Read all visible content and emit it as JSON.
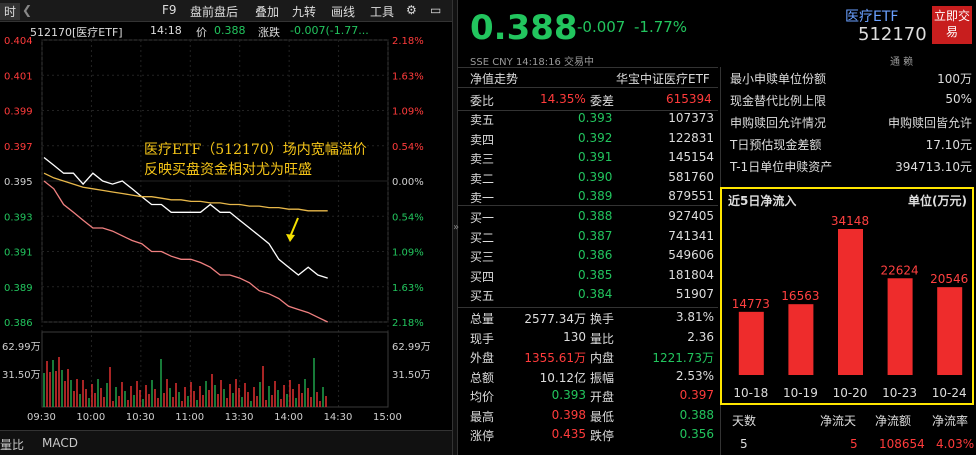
{
  "toolbar": {
    "time_tab": "时",
    "f9": "F9",
    "pre_post": "盘前盘后",
    "overlay": "叠加",
    "nine": "九转",
    "draw": "画线",
    "tools": "工具"
  },
  "chart_header": {
    "code_name": "512170[医疗ETF]",
    "time": "14:18",
    "price_label": "价",
    "price": "0.388",
    "change_label": "涨跌",
    "change": "-0.007(-1.77..."
  },
  "annotation": {
    "line1": "医疗ETF（512170）场内宽幅溢价",
    "line2": "反映买盘资金相对尤为旺盛"
  },
  "chart_data": {
    "type": "line",
    "title": "512170[医疗ETF] 分时",
    "x_labels": [
      "09:30",
      "10:00",
      "10:30",
      "11:00",
      "13:30",
      "14:00",
      "14:30",
      "15:00"
    ],
    "y_left_labels": [
      "0.404",
      "0.401",
      "0.399",
      "0.397",
      "0.395",
      "0.393",
      "0.391",
      "0.389",
      "0.386"
    ],
    "y_right_labels": [
      "2.18%",
      "1.63%",
      "1.09%",
      "0.54%",
      "0.00%",
      "0.54%",
      "1.09%",
      "1.63%",
      "2.18%"
    ],
    "vol_labels": [
      "62.99万",
      "31.50万"
    ],
    "series": [
      {
        "color": "#ffffff",
        "values": [
          0.3965,
          0.396,
          0.3955,
          0.3955,
          0.3948,
          0.3955,
          0.395,
          0.3948,
          0.395,
          0.3945,
          0.394,
          0.3935,
          0.3935,
          0.393,
          0.393,
          0.393,
          0.393,
          0.3935,
          0.393,
          0.393,
          0.3925,
          0.392,
          0.3915,
          0.391,
          0.39,
          0.3895,
          0.389,
          0.3895,
          0.389,
          0.3888
        ]
      },
      {
        "color": "#e8b84a",
        "values": [
          0.3955,
          0.3952,
          0.395,
          0.3948,
          0.3946,
          0.3945,
          0.3944,
          0.3943,
          0.3942,
          0.3941,
          0.394,
          0.394,
          0.3939,
          0.3938,
          0.3938,
          0.3937,
          0.3937,
          0.3936,
          0.3936,
          0.3935,
          0.3935,
          0.3934,
          0.3934,
          0.3933,
          0.3933,
          0.3932,
          0.3932,
          0.3931,
          0.3931,
          0.3931
        ]
      },
      {
        "color": "#f08080",
        "values": [
          0.395,
          0.3945,
          0.3935,
          0.393,
          0.3925,
          0.392,
          0.392,
          0.3918,
          0.3915,
          0.3912,
          0.391,
          0.3905,
          0.3905,
          0.3902,
          0.39,
          0.39,
          0.3898,
          0.3895,
          0.389,
          0.389,
          0.3888,
          0.3885,
          0.388,
          0.3878,
          0.3875,
          0.387,
          0.3868,
          0.3866,
          0.3863,
          0.386
        ]
      }
    ],
    "ylim": [
      0.386,
      0.404
    ]
  },
  "bottom_tabs": {
    "vol": "量比",
    "macd": "MACD"
  },
  "quote": {
    "price": "0.388",
    "change": "-0.007",
    "pct": "-1.77%",
    "exchange_line": "SSE  CNY  14:18:16  交易中",
    "name": "医疗ETF",
    "code": "512170",
    "trade_btn": "立即交易",
    "icons_text": "通  赖"
  },
  "order_book": {
    "header_left": "净值走势",
    "header_right": "华宝中证医疗ETF",
    "weibi_label": "委比",
    "weibi": "14.35%",
    "weicha_label": "委差",
    "weicha": "615394",
    "asks": [
      {
        "label": "卖五",
        "price": "0.393",
        "vol": "107373"
      },
      {
        "label": "卖四",
        "price": "0.392",
        "vol": "122831"
      },
      {
        "label": "卖三",
        "price": "0.391",
        "vol": "145154"
      },
      {
        "label": "卖二",
        "price": "0.390",
        "vol": "581760"
      },
      {
        "label": "卖一",
        "price": "0.389",
        "vol": "879551"
      }
    ],
    "bids": [
      {
        "label": "买一",
        "price": "0.388",
        "vol": "927405"
      },
      {
        "label": "买二",
        "price": "0.387",
        "vol": "741341"
      },
      {
        "label": "买三",
        "price": "0.386",
        "vol": "549606"
      },
      {
        "label": "买四",
        "price": "0.385",
        "vol": "181804"
      },
      {
        "label": "买五",
        "price": "0.384",
        "vol": "51907"
      }
    ]
  },
  "stats": [
    {
      "l1": "总量",
      "v1": "2577.34万",
      "l2": "换手",
      "v2": "3.81%",
      "c1": "white",
      "c2": "white"
    },
    {
      "l1": "现手",
      "v1": "130",
      "l2": "量比",
      "v2": "2.36",
      "c1": "white",
      "c2": "white"
    },
    {
      "l1": "外盘",
      "v1": "1355.61万",
      "l2": "内盘",
      "v2": "1221.73万",
      "c1": "red",
      "c2": "green"
    },
    {
      "l1": "总额",
      "v1": "10.12亿",
      "l2": "振幅",
      "v2": "2.53%",
      "c1": "white",
      "c2": "white"
    },
    {
      "l1": "均价",
      "v1": "0.393",
      "l2": "开盘",
      "v2": "0.397",
      "c1": "green",
      "c2": "red"
    },
    {
      "l1": "最高",
      "v1": "0.398",
      "l2": "最低",
      "v2": "0.388",
      "c1": "red",
      "c2": "green"
    },
    {
      "l1": "涨停",
      "v1": "0.435",
      "l2": "跌停",
      "v2": "0.356",
      "c1": "red",
      "c2": "green"
    }
  ],
  "fund_info": [
    {
      "label": "最小申赎单位份额",
      "value": "100万"
    },
    {
      "label": "现金替代比例上限",
      "value": "50%"
    },
    {
      "label": "申购赎回允许情况",
      "value": "申购赎回皆允许"
    },
    {
      "label": "T日预估现金差额",
      "value": "17.10元"
    },
    {
      "label": "T-1日单位申赎资产",
      "value": "394713.10元"
    }
  ],
  "net_inflow": {
    "title": "近5日净流入",
    "unit": "单位(万元)",
    "chart_data": {
      "type": "bar",
      "categories": [
        "10-18",
        "10-19",
        "10-20",
        "10-23",
        "10-24"
      ],
      "values": [
        14773,
        16563,
        34148,
        22624,
        20546
      ],
      "labels": [
        "14773",
        "16563",
        "34148",
        "22624",
        "20546"
      ],
      "ylim": [
        0,
        34148
      ]
    }
  },
  "footer_table": {
    "headers": [
      "天数",
      "净流天",
      "净流额",
      "净流率"
    ],
    "row": [
      "5",
      "5",
      "108654",
      "4.03%"
    ]
  }
}
